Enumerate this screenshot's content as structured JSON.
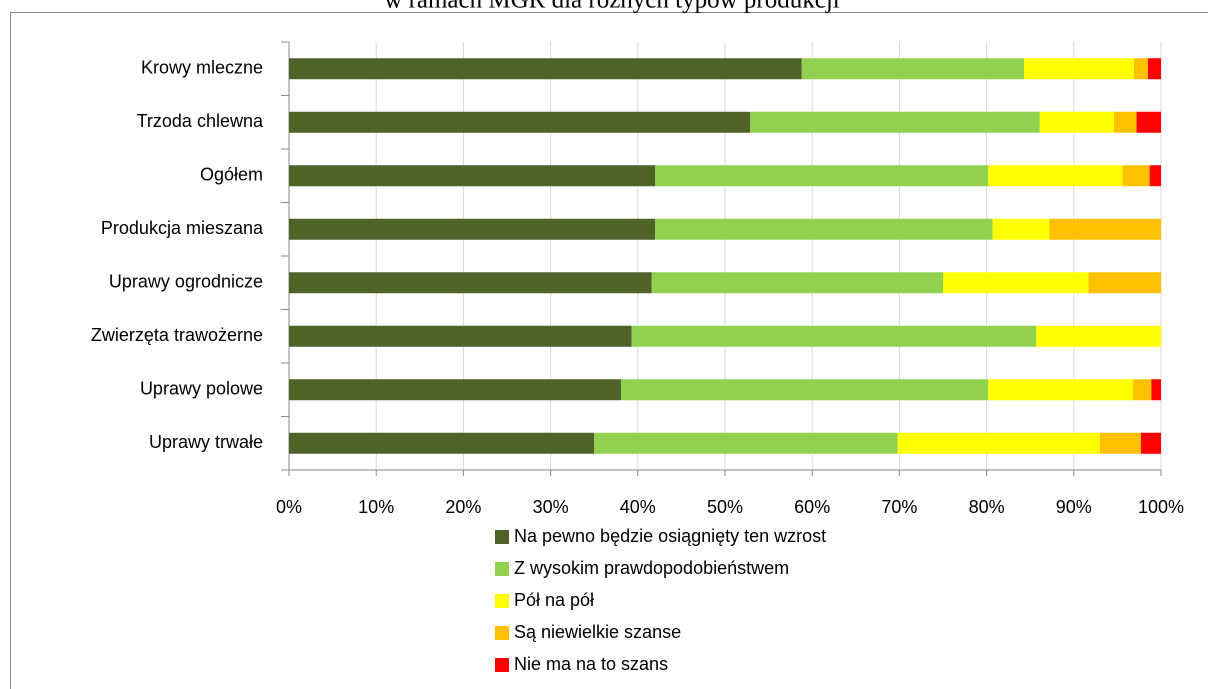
{
  "chart_data": {
    "type": "stacked-bar-horizontal",
    "title": "w ramach MGR dla różnych typów produkcji",
    "categories": [
      "Krowy mleczne",
      "Trzoda chlewna",
      "Ogółem",
      "Produkcja mieszana",
      "Uprawy ogrodnicze",
      "Zwierzęta trawożerne",
      "Uprawy polowe",
      "Uprawy trwałe"
    ],
    "series": [
      {
        "name": "Na pewno będzie osiągnięty ten wzrost",
        "color": "#4f6228",
        "values": [
          58.8,
          52.9,
          42.0,
          42.0,
          41.6,
          39.3,
          38.1,
          35.0
        ]
      },
      {
        "name": "Z wysokim prawdopodobieństwem",
        "color": "#92d050",
        "values": [
          25.5,
          33.2,
          38.2,
          38.7,
          33.4,
          46.4,
          42.1,
          34.8
        ]
      },
      {
        "name": "Pół na pół",
        "color": "#ffff00",
        "values": [
          12.6,
          8.5,
          15.4,
          6.5,
          16.7,
          14.3,
          16.6,
          23.2
        ]
      },
      {
        "name": "Są niewielkie szanse",
        "color": "#ffc000",
        "values": [
          1.6,
          2.6,
          3.1,
          12.8,
          8.3,
          0,
          2.1,
          4.7
        ]
      },
      {
        "name": "Nie ma na to szans",
        "color": "#ff0000",
        "values": [
          1.5,
          2.8,
          1.3,
          0,
          0,
          0,
          1.1,
          2.3
        ]
      }
    ],
    "xlim": [
      0,
      100
    ],
    "xticks": [
      {
        "value": 0,
        "label": "0%"
      },
      {
        "value": 10,
        "label": "10%"
      },
      {
        "value": 20,
        "label": "20%"
      },
      {
        "value": 30,
        "label": "30%"
      },
      {
        "value": 40,
        "label": "40%"
      },
      {
        "value": 50,
        "label": "50%"
      },
      {
        "value": 60,
        "label": "60%"
      },
      {
        "value": 70,
        "label": "70%"
      },
      {
        "value": 80,
        "label": "80%"
      },
      {
        "value": 90,
        "label": "90%"
      },
      {
        "value": 100,
        "label": "100%"
      }
    ],
    "grid": true
  }
}
